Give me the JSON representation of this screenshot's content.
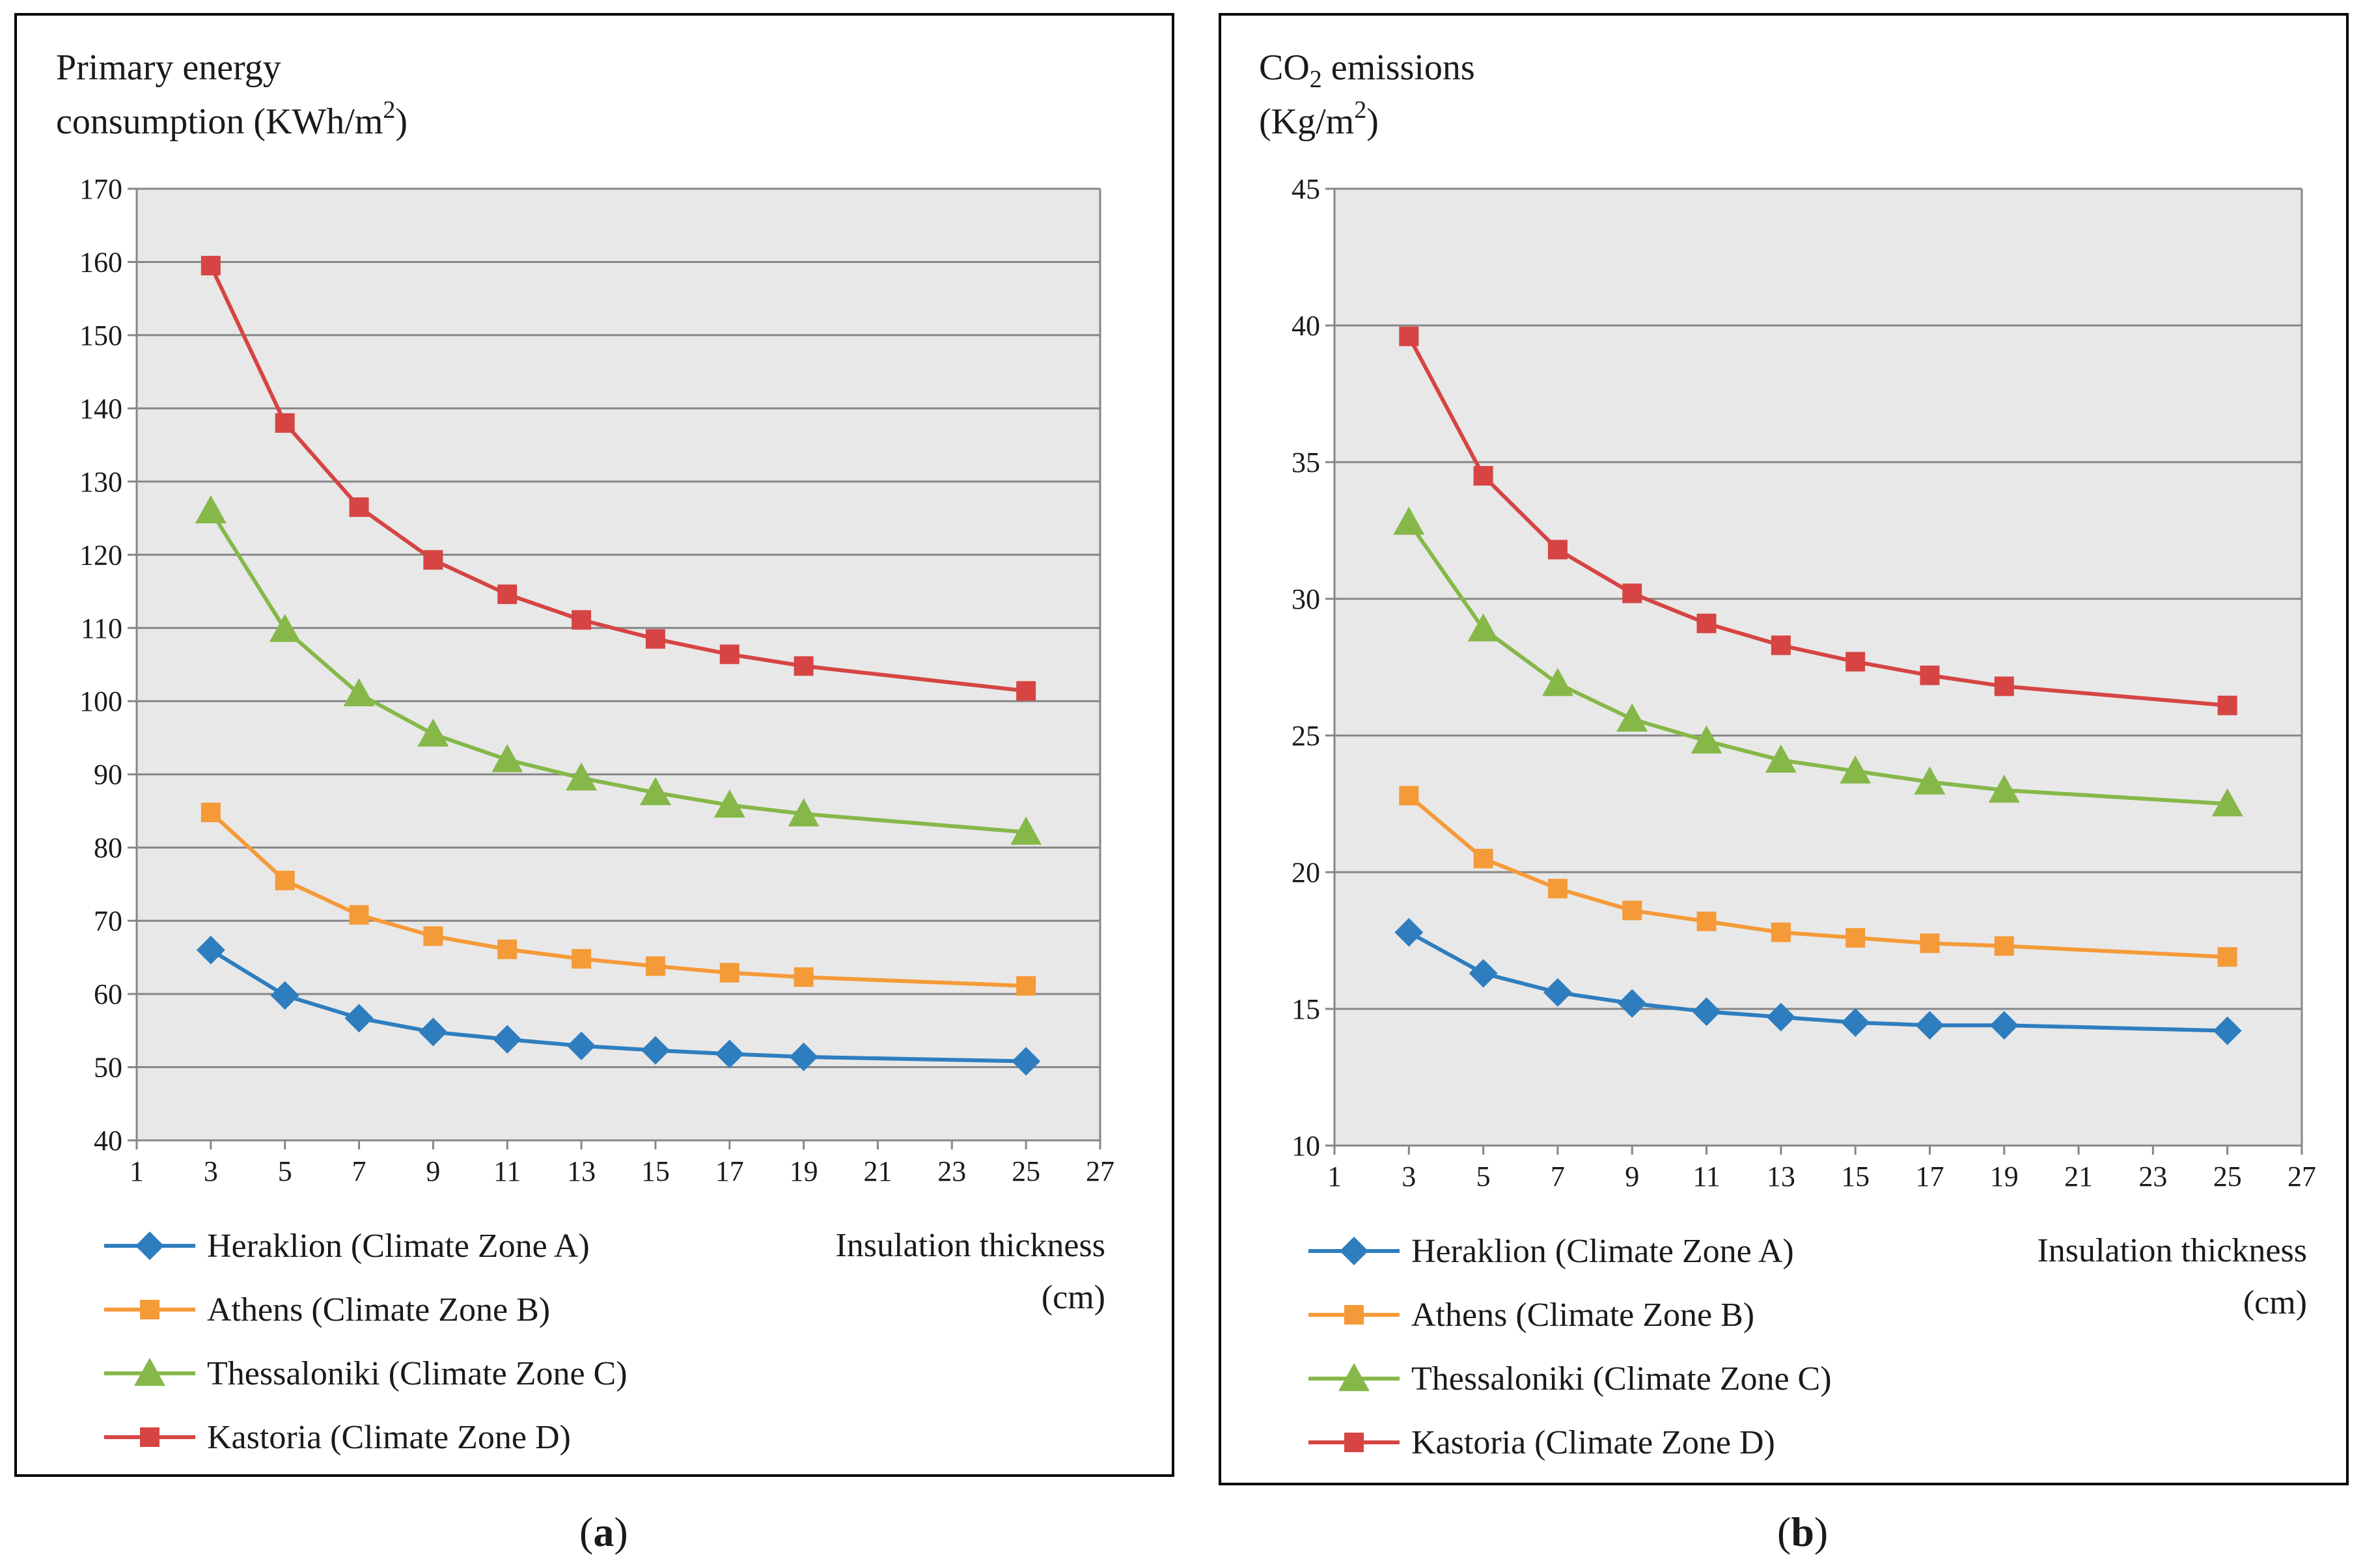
{
  "chart_data": [
    {
      "type": "line",
      "panel_label": "a",
      "title_line1": "Primary energy",
      "title_line2": "consumption (KWh/m",
      "title_sup": "2",
      "title_end": ")",
      "xlabel_line1": "Insulation thickness",
      "xlabel_line2": "(cm)",
      "xlim": [
        1,
        27
      ],
      "xticks": [
        1,
        3,
        5,
        7,
        9,
        11,
        13,
        15,
        17,
        19,
        21,
        23,
        25,
        27
      ],
      "ylim": [
        40,
        170
      ],
      "yticks": [
        40,
        50,
        60,
        70,
        80,
        90,
        100,
        110,
        120,
        130,
        140,
        150,
        160,
        170
      ],
      "grid": true,
      "legend_position": "bottom",
      "x": [
        3,
        5,
        7,
        9,
        11,
        13,
        15,
        17,
        19,
        25
      ],
      "series": [
        {
          "name": "Heraklion (Climate Zone A)",
          "color": "#2e7ebf",
          "marker": "diamond",
          "values": [
            66,
            59.8,
            56.7,
            54.8,
            53.8,
            52.9,
            52.3,
            51.8,
            51.4,
            50.8
          ]
        },
        {
          "name": "Athens (Climate Zone B)",
          "color": "#f59a38",
          "marker": "square",
          "values": [
            84.8,
            75.5,
            70.8,
            67.9,
            66.1,
            64.8,
            63.8,
            62.9,
            62.3,
            61.1
          ]
        },
        {
          "name": "Thessaloniki (Climate Zone C)",
          "color": "#86b849",
          "marker": "triangle",
          "values": [
            126,
            109.8,
            101,
            95.5,
            92,
            89.5,
            87.5,
            85.8,
            84.6,
            82.1
          ]
        },
        {
          "name": "Kastoria (Climate Zone D)",
          "color": "#d64543",
          "marker": "square",
          "values": [
            159.5,
            138,
            126.5,
            119.3,
            114.6,
            111.1,
            108.5,
            106.4,
            104.8,
            101.4
          ]
        }
      ]
    },
    {
      "type": "line",
      "panel_label": "b",
      "title_line1": "CO",
      "title_sub": "2",
      "title_line1_end": " emissions",
      "title_line2": "(Kg/m",
      "title_sup": "2",
      "title_end": ")",
      "xlabel_line1": "Insulation thickness",
      "xlabel_line2": "(cm)",
      "xlim": [
        1,
        27
      ],
      "xticks": [
        1,
        3,
        5,
        7,
        9,
        11,
        13,
        15,
        17,
        19,
        21,
        23,
        25,
        27
      ],
      "ylim": [
        10,
        45
      ],
      "yticks": [
        10,
        15,
        20,
        25,
        30,
        35,
        40,
        45
      ],
      "grid": true,
      "legend_position": "bottom",
      "x": [
        3,
        5,
        7,
        9,
        11,
        13,
        15,
        17,
        19,
        25
      ],
      "series": [
        {
          "name": "Heraklion (Climate Zone A)",
          "color": "#2e7ebf",
          "marker": "diamond",
          "values": [
            17.8,
            16.3,
            15.6,
            15.2,
            14.9,
            14.7,
            14.5,
            14.4,
            14.4,
            14.2
          ]
        },
        {
          "name": "Athens (Climate Zone B)",
          "color": "#f59a38",
          "marker": "square",
          "values": [
            22.8,
            20.5,
            19.4,
            18.6,
            18.2,
            17.8,
            17.6,
            17.4,
            17.3,
            16.9
          ]
        },
        {
          "name": "Thessaloniki (Climate Zone C)",
          "color": "#86b849",
          "marker": "triangle",
          "values": [
            32.8,
            28.9,
            26.9,
            25.6,
            24.8,
            24.1,
            23.7,
            23.3,
            23,
            22.5
          ]
        },
        {
          "name": "Kastoria (Climate Zone D)",
          "color": "#d64543",
          "marker": "square",
          "values": [
            39.6,
            34.5,
            31.8,
            30.2,
            29.1,
            28.3,
            27.7,
            27.2,
            26.8,
            26.1
          ]
        }
      ]
    }
  ]
}
